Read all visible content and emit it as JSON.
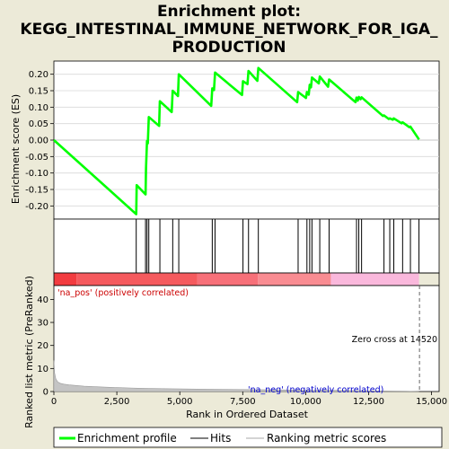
{
  "chart_data": {
    "type": "line",
    "title_lines": [
      "Enrichment plot:",
      "KEGG_INTESTINAL_IMMUNE_NETWORK_FOR_IGA_",
      "PRODUCTION"
    ],
    "top_panel": {
      "ylabel": "Enrichment score (ES)",
      "ylim": [
        -0.24,
        0.24
      ],
      "yticks": [
        0.2,
        0.15,
        0.1,
        0.05,
        0.0,
        -0.05,
        -0.1,
        -0.15,
        -0.2
      ],
      "ytick_labels": [
        "0.20",
        "0.15",
        "0.10",
        "0.05",
        "0.00",
        "-0.05",
        "-0.10",
        "-0.15",
        "-0.20"
      ],
      "series_name": "Enrichment profile",
      "color": "#00ff00",
      "es_x": [
        0,
        3270,
        3290,
        3640,
        3660,
        3700,
        3730,
        3770,
        4180,
        4210,
        4680,
        4720,
        4930,
        4960,
        6250,
        6290,
        6360,
        6400,
        7470,
        7510,
        7690,
        7730,
        8080,
        8120,
        9660,
        9700,
        10010,
        10050,
        10120,
        10160,
        10210,
        10250,
        10520,
        10560,
        10890,
        10930,
        11980,
        12020,
        12070,
        12110,
        12180,
        12220,
        13070,
        13110,
        13300,
        13340,
        13460,
        13500,
        13810,
        13850,
        14120,
        14160,
        14500
      ],
      "es_y": [
        0.0,
        -0.225,
        -0.137,
        -0.165,
        -0.085,
        -0.003,
        -0.01,
        0.07,
        0.043,
        0.118,
        0.085,
        0.15,
        0.134,
        0.2,
        0.104,
        0.157,
        0.152,
        0.205,
        0.137,
        0.179,
        0.17,
        0.21,
        0.18,
        0.219,
        0.115,
        0.146,
        0.128,
        0.146,
        0.138,
        0.168,
        0.16,
        0.19,
        0.172,
        0.193,
        0.162,
        0.184,
        0.115,
        0.129,
        0.12,
        0.131,
        0.124,
        0.13,
        0.073,
        0.075,
        0.064,
        0.066,
        0.062,
        0.066,
        0.051,
        0.054,
        0.039,
        0.041,
        0.002
      ]
    },
    "hits": {
      "name": "Hits",
      "x": [
        3270,
        3640,
        3700,
        3770,
        4210,
        4720,
        4960,
        6290,
        6400,
        7510,
        7730,
        8120,
        9700,
        10050,
        10160,
        10250,
        10560,
        10930,
        12020,
        12110,
        12220,
        13110,
        13340,
        13500,
        13850,
        14160,
        14500
      ]
    },
    "color_bar": {
      "segments": [
        {
          "from": 0,
          "to": 900,
          "color": "#f23c40"
        },
        {
          "from": 900,
          "to": 5700,
          "color": "#f55a5e"
        },
        {
          "from": 5700,
          "to": 8100,
          "color": "#f77079"
        },
        {
          "from": 8100,
          "to": 11000,
          "color": "#f98c92"
        },
        {
          "from": 11000,
          "to": 14500,
          "color": "#fab8dc"
        }
      ]
    },
    "bottom_panel": {
      "ylabel": "Ranked list metric (PreRanked)",
      "ylim": [
        0,
        46
      ],
      "yticks": [
        0,
        10,
        20,
        30,
        40
      ],
      "ytick_labels": [
        "0",
        "10",
        "20",
        "30",
        "40"
      ],
      "series_name": "Ranking metric scores",
      "metric_x": [
        0,
        30,
        80,
        150,
        250,
        400,
        600,
        900,
        1200,
        1600,
        2000,
        2500,
        3000,
        3500,
        4000,
        5000,
        6000,
        7000,
        8000,
        9000,
        10000,
        11000,
        12000,
        13000,
        14000,
        14500
      ],
      "metric_y": [
        13.5,
        8,
        5.5,
        4.2,
        3.6,
        3.2,
        2.9,
        2.6,
        2.3,
        2.1,
        1.9,
        1.7,
        1.55,
        1.4,
        1.3,
        1.15,
        1.0,
        0.9,
        0.8,
        0.7,
        0.6,
        0.5,
        0.4,
        0.25,
        0.1,
        0.0
      ],
      "zero_cross_x": 14520,
      "annotation_pos": "'na_pos' (positively correlated)",
      "annotation_neg": "'na_neg' (negatively correlated)",
      "annotation_zero": "Zero cross at 14520"
    },
    "xaxis": {
      "label": "Rank in Ordered Dataset",
      "xlim": [
        0,
        15300
      ],
      "xticks": [
        0,
        2500,
        5000,
        7500,
        10000,
        12500,
        15000
      ],
      "xtick_labels": [
        "0",
        "2,500",
        "5,000",
        "7,500",
        "10,000",
        "12,500",
        "15,000"
      ]
    },
    "legend": {
      "placement": "bottom",
      "entries": [
        "Enrichment profile",
        "Hits",
        "Ranking metric scores"
      ]
    }
  }
}
